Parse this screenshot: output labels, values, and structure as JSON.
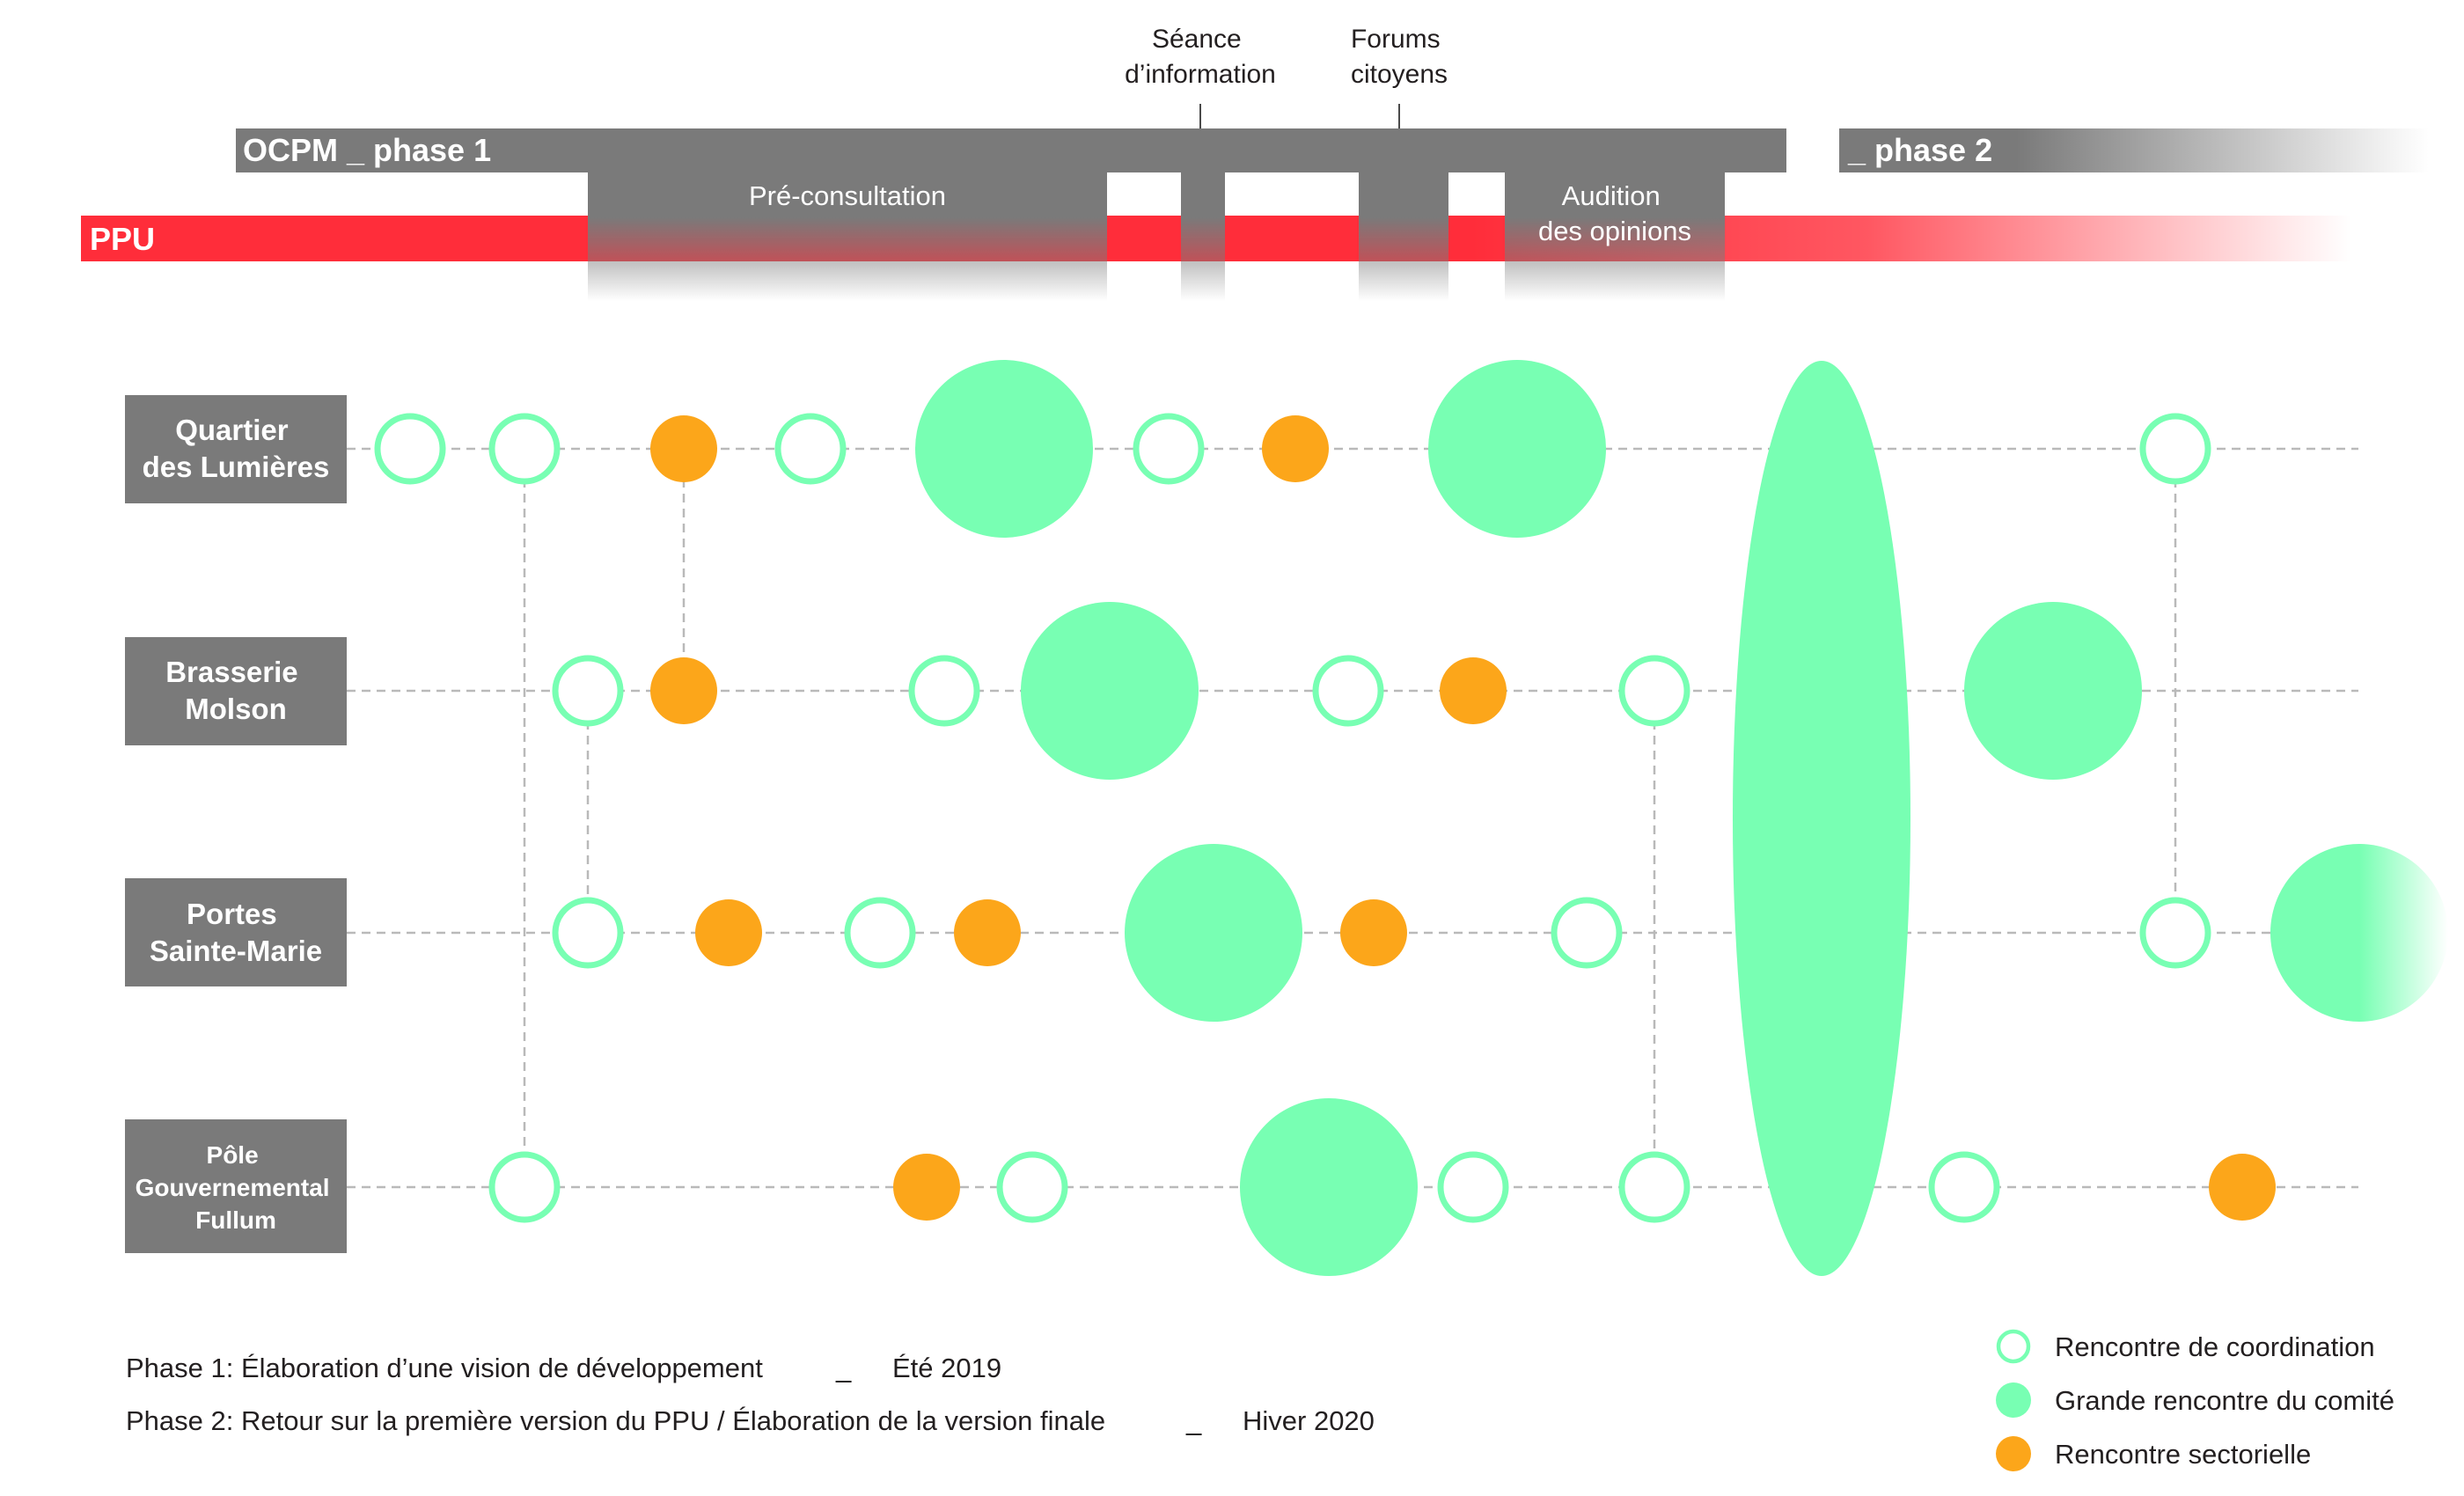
{
  "top_labels": {
    "seance": [
      "Séance",
      "d’information"
    ],
    "forums": [
      "Forums",
      "citoyens"
    ]
  },
  "bars": {
    "ocpm_phase1": "OCPM _ phase 1",
    "phase2": "_ phase 2",
    "ppu": "PPU",
    "pre_consultation": "Pré-consultation",
    "audition": [
      "Audition",
      "des opinions"
    ]
  },
  "rows": [
    {
      "id": "quartier",
      "label": [
        "Quartier",
        "des Lumières"
      ]
    },
    {
      "id": "brasserie",
      "label": [
        "Brasserie",
        "Molson"
      ]
    },
    {
      "id": "portes",
      "label": [
        "Portes",
        "Sainte-Marie"
      ]
    },
    {
      "id": "pole",
      "label": [
        "Pôle",
        "Gouvernemental",
        "Fullum"
      ]
    }
  ],
  "events": [
    {
      "row": 0,
      "kind": "coordination"
    },
    {
      "row": 0,
      "kind": "coordination"
    },
    {
      "row": 0,
      "kind": "sectorielle"
    },
    {
      "row": 0,
      "kind": "coordination"
    },
    {
      "row": 0,
      "kind": "grande"
    },
    {
      "row": 0,
      "kind": "coordination"
    },
    {
      "row": 0,
      "kind": "sectorielle"
    },
    {
      "row": 0,
      "kind": "grande"
    },
    {
      "row": 0,
      "kind": "coordination"
    },
    {
      "row": 1,
      "kind": "coordination"
    },
    {
      "row": 1,
      "kind": "sectorielle"
    },
    {
      "row": 1,
      "kind": "coordination"
    },
    {
      "row": 1,
      "kind": "grande"
    },
    {
      "row": 1,
      "kind": "coordination"
    },
    {
      "row": 1,
      "kind": "sectorielle"
    },
    {
      "row": 1,
      "kind": "coordination"
    },
    {
      "row": 1,
      "kind": "grande"
    },
    {
      "row": 2,
      "kind": "coordination"
    },
    {
      "row": 2,
      "kind": "sectorielle"
    },
    {
      "row": 2,
      "kind": "coordination"
    },
    {
      "row": 2,
      "kind": "sectorielle"
    },
    {
      "row": 2,
      "kind": "grande"
    },
    {
      "row": 2,
      "kind": "sectorielle"
    },
    {
      "row": 2,
      "kind": "coordination"
    },
    {
      "row": 2,
      "kind": "coordination"
    },
    {
      "row": 2,
      "kind": "grande"
    },
    {
      "row": 3,
      "kind": "coordination"
    },
    {
      "row": 3,
      "kind": "sectorielle"
    },
    {
      "row": 3,
      "kind": "coordination"
    },
    {
      "row": 3,
      "kind": "grande"
    },
    {
      "row": 3,
      "kind": "coordination"
    },
    {
      "row": 3,
      "kind": "coordination"
    },
    {
      "row": 3,
      "kind": "coordination"
    },
    {
      "row": 3,
      "kind": "sectorielle"
    },
    {
      "row": "all",
      "kind": "grande"
    }
  ],
  "phases": [
    {
      "text": "Phase 1: Élaboration d’une vision de développement",
      "sep": "_",
      "season": "Été 2019"
    },
    {
      "text": "Phase 2: Retour sur la première version du PPU / Élaboration de la version finale",
      "sep": "_",
      "season": "Hiver 2020"
    }
  ],
  "legend": [
    {
      "kind": "coordination",
      "label": "Rencontre de coordination"
    },
    {
      "kind": "grande",
      "label": "Grande rencontre du comité"
    },
    {
      "kind": "sectorielle",
      "label": "Rencontre sectorielle"
    }
  ],
  "colors": {
    "grey": "#7a7a7a",
    "red": "#ff2d3a",
    "green": "#78ffb3",
    "orange": "#fca61a",
    "line": "#b9b9b9",
    "text": "#231f20"
  }
}
